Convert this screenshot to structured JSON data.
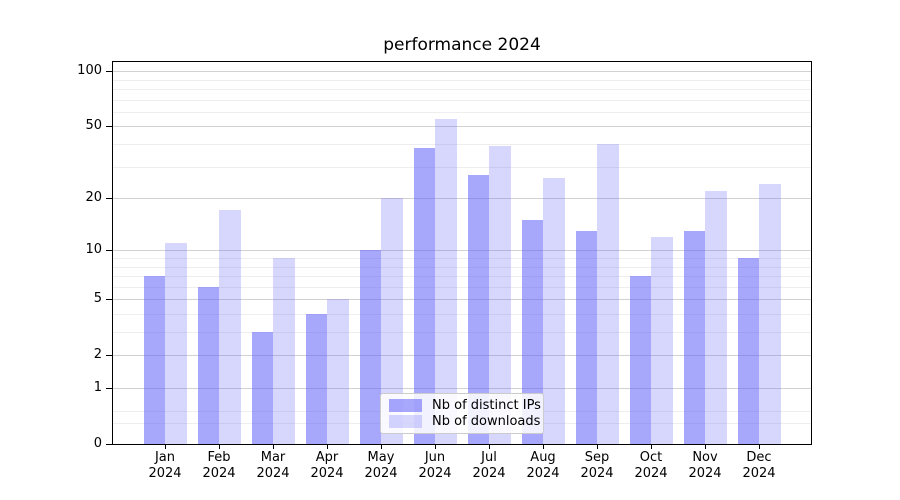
{
  "chart_data": {
    "type": "bar",
    "title": "performance 2024",
    "categories": [
      "Jan",
      "Feb",
      "Mar",
      "Apr",
      "May",
      "Jun",
      "Jul",
      "Aug",
      "Sep",
      "Oct",
      "Nov",
      "Dec"
    ],
    "x_year_suffix": "2024",
    "series": [
      {
        "name": "Nb of distinct IPs",
        "base_color": "#5f5ffa",
        "alpha": 0.55,
        "values": [
          7,
          6,
          3,
          4,
          10,
          38,
          27,
          15,
          13,
          7,
          13,
          9
        ]
      },
      {
        "name": "Nb of downloads",
        "base_color": "#5f5ffa",
        "alpha": 0.25,
        "values": [
          11,
          17,
          9,
          5,
          20,
          55,
          39,
          26,
          40,
          12,
          22,
          24
        ]
      }
    ],
    "xlabel": "",
    "ylabel": "",
    "y_scale": "log10(1+x)",
    "y_ticks": [
      0,
      1,
      2,
      5,
      10,
      20,
      50,
      100
    ],
    "y_minor_ticks": [
      0.3,
      0.5,
      3,
      4,
      6,
      7,
      8,
      9,
      30,
      40,
      60,
      70,
      80,
      90
    ],
    "ylim": [
      0,
      112
    ],
    "grid": true,
    "legend_position": "lower center"
  },
  "colors": {
    "background": "#ffffff",
    "spine": "#000000",
    "text": "#000000",
    "grid_major": "#d2d2d2",
    "grid_minor": "#eeeeee",
    "legend_background": "rgba(255,255,255,0.85)",
    "legend_border": "#cccccc"
  }
}
